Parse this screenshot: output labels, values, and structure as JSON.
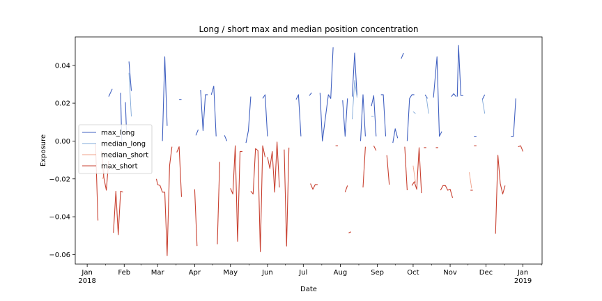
{
  "chart_data": {
    "type": "line",
    "title": "Long / short max and median position concentration",
    "xlabel": "Date",
    "ylabel": "Exposure",
    "xlim": [
      "2017-12-22",
      "2019-01-17"
    ],
    "ylim": [
      -0.065,
      0.055
    ],
    "grid": false,
    "legend_placement": "center-left",
    "x_ticks": [
      {
        "date": "2018-01-01",
        "label": "Jan",
        "sublabel": "2018"
      },
      {
        "date": "2018-02-01",
        "label": "Feb",
        "sublabel": ""
      },
      {
        "date": "2018-03-01",
        "label": "Mar",
        "sublabel": ""
      },
      {
        "date": "2018-04-01",
        "label": "Apr",
        "sublabel": ""
      },
      {
        "date": "2018-05-01",
        "label": "May",
        "sublabel": ""
      },
      {
        "date": "2018-06-01",
        "label": "Jun",
        "sublabel": ""
      },
      {
        "date": "2018-07-01",
        "label": "Jul",
        "sublabel": ""
      },
      {
        "date": "2018-08-01",
        "label": "Aug",
        "sublabel": ""
      },
      {
        "date": "2018-09-01",
        "label": "Sep",
        "sublabel": ""
      },
      {
        "date": "2018-10-01",
        "label": "Oct",
        "sublabel": ""
      },
      {
        "date": "2018-11-01",
        "label": "Nov",
        "sublabel": ""
      },
      {
        "date": "2018-12-01",
        "label": "Dec",
        "sublabel": ""
      },
      {
        "date": "2019-01-01",
        "label": "Jan",
        "sublabel": "2019"
      }
    ],
    "y_ticks": [
      {
        "value": 0.04,
        "label": "0.04"
      },
      {
        "value": 0.02,
        "label": "0.02"
      },
      {
        "value": 0.0,
        "label": "0.00"
      },
      {
        "value": -0.02,
        "label": "−0.02"
      },
      {
        "value": -0.04,
        "label": "−0.04"
      },
      {
        "value": -0.06,
        "label": "−0.06"
      }
    ],
    "series": [
      {
        "name": "max_long",
        "color": "#4060c0",
        "width": 1.1,
        "segments": [
          [
            [
              "2018-01-19",
              0.0235
            ],
            [
              "2018-01-22",
              0.0275
            ]
          ],
          [
            [
              "2018-01-29",
              0.0255
            ],
            [
              "2018-01-30",
              -0.001
            ]
          ],
          [
            [
              "2018-02-02",
              0.0205
            ],
            [
              "2018-02-03",
              0.0035
            ]
          ],
          [
            [
              "2018-02-05",
              0.042
            ],
            [
              "2018-02-07",
              0.0265
            ]
          ],
          [
            [
              "2018-03-05",
              0.0
            ],
            [
              "2018-03-07",
              0.0445
            ],
            [
              "2018-03-09",
              0.008
            ]
          ],
          [
            [
              "2018-03-19",
              0.022
            ],
            [
              "2018-03-21",
              0.022
            ]
          ],
          [
            [
              "2018-04-02",
              0.003
            ],
            [
              "2018-04-04",
              0.006
            ]
          ],
          [
            [
              "2018-04-06",
              0.027
            ],
            [
              "2018-04-08",
              0.0055
            ],
            [
              "2018-04-10",
              0.0245
            ],
            [
              "2018-04-12",
              0.0245
            ]
          ],
          [
            [
              "2018-04-15",
              0.0245
            ],
            [
              "2018-04-17",
              0.029
            ],
            [
              "2018-04-19",
              0.0025
            ]
          ],
          [
            [
              "2018-04-26",
              0.003
            ],
            [
              "2018-04-28",
              0.0
            ]
          ],
          [
            [
              "2018-05-14",
              -0.001
            ],
            [
              "2018-05-16",
              0.0055
            ],
            [
              "2018-05-18",
              0.0235
            ]
          ],
          [
            [
              "2018-05-28",
              0.0225
            ],
            [
              "2018-05-30",
              0.0245
            ],
            [
              "2018-06-01",
              0.0025
            ]
          ],
          [
            [
              "2018-06-25",
              0.022
            ],
            [
              "2018-06-27",
              0.0245
            ],
            [
              "2018-06-29",
              0.0025
            ]
          ],
          [
            [
              "2018-07-06",
              0.024
            ],
            [
              "2018-07-08",
              0.0255
            ]
          ],
          [
            [
              "2018-07-15",
              0.0255
            ],
            [
              "2018-07-17",
              0.0
            ],
            [
              "2018-07-22",
              0.0245
            ],
            [
              "2018-07-24",
              0.0225
            ],
            [
              "2018-07-26",
              0.0495
            ]
          ],
          [
            [
              "2018-08-03",
              0.0215
            ],
            [
              "2018-08-05",
              0.0025
            ],
            [
              "2018-08-07",
              0.0225
            ]
          ],
          [
            [
              "2018-08-11",
              0.0235
            ],
            [
              "2018-08-13",
              0.0465
            ],
            [
              "2018-08-15",
              0.024
            ]
          ],
          [
            [
              "2018-08-18",
              0.0
            ],
            [
              "2018-08-20",
              0.0245
            ],
            [
              "2018-08-22",
              0.0025
            ]
          ],
          [
            [
              "2018-08-27",
              0.0185
            ],
            [
              "2018-08-29",
              0.024
            ],
            [
              "2018-08-31",
              0.0025
            ]
          ],
          [
            [
              "2018-09-04",
              0.0245
            ],
            [
              "2018-09-06",
              0.0245
            ],
            [
              "2018-09-08",
              0.0025
            ]
          ],
          [
            [
              "2018-09-14",
              -0.001
            ],
            [
              "2018-09-16",
              0.0065
            ],
            [
              "2018-09-18",
              0.0015
            ]
          ],
          [
            [
              "2018-09-21",
              0.0435
            ],
            [
              "2018-09-23",
              0.0465
            ]
          ],
          [
            [
              "2018-09-26",
              0.0
            ],
            [
              "2018-09-28",
              0.0225
            ],
            [
              "2018-09-30",
              0.0245
            ],
            [
              "2018-10-02",
              0.0245
            ]
          ],
          [
            [
              "2018-10-11",
              0.0245
            ],
            [
              "2018-10-13",
              0.0225
            ]
          ],
          [
            [
              "2018-10-18",
              0.023
            ],
            [
              "2018-10-21",
              0.0445
            ],
            [
              "2018-10-23",
              0.0025
            ],
            [
              "2018-10-25",
              0.005
            ]
          ],
          [
            [
              "2018-11-02",
              0.0235
            ],
            [
              "2018-11-04",
              0.025
            ],
            [
              "2018-11-06",
              0.0235
            ]
          ],
          [
            [
              "2018-11-07",
              0.0235
            ],
            [
              "2018-11-08",
              0.0505
            ],
            [
              "2018-11-10",
              0.024
            ],
            [
              "2018-11-12",
              0.024
            ]
          ],
          [
            [
              "2018-11-21",
              0.0025
            ],
            [
              "2018-11-23",
              0.0025
            ]
          ],
          [
            [
              "2018-11-28",
              0.022
            ],
            [
              "2018-11-30",
              0.0245
            ]
          ],
          [
            [
              "2018-12-22",
              0.0025
            ],
            [
              "2018-12-24",
              0.0025
            ],
            [
              "2018-12-26",
              0.0225
            ]
          ]
        ]
      },
      {
        "name": "median_long",
        "color": "#80a8d8",
        "width": 0.9,
        "segments": [
          [
            [
              "2018-02-05",
              0.036
            ],
            [
              "2018-02-07",
              0.013
            ]
          ],
          [
            [
              "2018-08-11",
              0.0115
            ],
            [
              "2018-08-13",
              0.032
            ],
            [
              "2018-08-15",
              0.023
            ]
          ],
          [
            [
              "2018-08-27",
              0.013
            ],
            [
              "2018-08-29",
              0.013
            ]
          ],
          [
            [
              "2018-10-01",
              0.0155
            ],
            [
              "2018-10-03",
              0.0145
            ]
          ],
          [
            [
              "2018-10-12",
              0.0235
            ],
            [
              "2018-10-14",
              0.0145
            ]
          ],
          [
            [
              "2018-11-28",
              0.022
            ],
            [
              "2018-11-30",
              0.0145
            ]
          ]
        ]
      },
      {
        "name": "median_short",
        "color": "#f0a088",
        "width": 0.9,
        "segments": [
          [
            [
              "2018-01-14",
              -0.02
            ],
            [
              "2018-01-16",
              -0.015
            ]
          ],
          [
            [
              "2018-10-01",
              -0.013
            ],
            [
              "2018-10-03",
              -0.022
            ]
          ],
          [
            [
              "2018-11-17",
              -0.0165
            ],
            [
              "2018-11-19",
              -0.025
            ]
          ]
        ]
      },
      {
        "name": "max_short",
        "color": "#c84030",
        "width": 1.1,
        "segments": [
          [
            [
              "2018-01-08",
              -0.0015
            ],
            [
              "2018-01-10",
              -0.042
            ]
          ],
          [
            [
              "2018-01-13",
              -0.0055
            ],
            [
              "2018-01-15",
              -0.0195
            ],
            [
              "2018-01-17",
              -0.026
            ],
            [
              "2018-01-19",
              -0.0105
            ]
          ],
          [
            [
              "2018-01-23",
              -0.0485
            ],
            [
              "2018-01-25",
              -0.0265
            ],
            [
              "2018-01-27",
              -0.0495
            ],
            [
              "2018-01-29",
              -0.0265
            ],
            [
              "2018-01-31",
              -0.027
            ]
          ],
          [
            [
              "2018-02-28",
              -0.02
            ],
            [
              "2018-03-01",
              -0.023
            ],
            [
              "2018-03-03",
              -0.0235
            ],
            [
              "2018-03-05",
              -0.027
            ],
            [
              "2018-03-07",
              -0.027
            ],
            [
              "2018-03-09",
              -0.0605
            ],
            [
              "2018-03-11",
              -0.013
            ],
            [
              "2018-03-13",
              -0.003
            ]
          ],
          [
            [
              "2018-03-17",
              -0.006
            ],
            [
              "2018-03-19",
              -0.003
            ],
            [
              "2018-03-21",
              -0.0295
            ]
          ],
          [
            [
              "2018-04-01",
              -0.0255
            ],
            [
              "2018-04-03",
              -0.0555
            ]
          ],
          [
            [
              "2018-04-20",
              -0.0545
            ],
            [
              "2018-04-22",
              -0.011
            ]
          ],
          [
            [
              "2018-05-01",
              -0.025
            ],
            [
              "2018-05-03",
              -0.028
            ],
            [
              "2018-05-05",
              -0.0025
            ],
            [
              "2018-05-07",
              -0.053
            ],
            [
              "2018-05-09",
              -0.0055
            ],
            [
              "2018-05-11",
              -0.0055
            ]
          ],
          [
            [
              "2018-05-18",
              -0.0265
            ],
            [
              "2018-05-20",
              -0.028
            ],
            [
              "2018-05-22",
              -0.004
            ],
            [
              "2018-05-24",
              -0.005
            ],
            [
              "2018-05-26",
              -0.0585
            ],
            [
              "2018-05-28",
              -0.0025
            ],
            [
              "2018-05-30",
              -0.0085
            ]
          ],
          [
            [
              "2018-06-01",
              -0.0085
            ],
            [
              "2018-06-03",
              -0.0145
            ],
            [
              "2018-06-05",
              -0.0055
            ],
            [
              "2018-06-07",
              -0.027
            ],
            [
              "2018-06-09",
              -0.0005
            ],
            [
              "2018-06-11",
              -0.0245
            ]
          ],
          [
            [
              "2018-06-15",
              -0.0045
            ],
            [
              "2018-06-17",
              -0.0555
            ],
            [
              "2018-06-19",
              -0.0035
            ]
          ],
          [
            [
              "2018-07-07",
              -0.0225
            ],
            [
              "2018-07-09",
              -0.0255
            ],
            [
              "2018-07-11",
              -0.023
            ],
            [
              "2018-07-13",
              -0.023
            ]
          ],
          [
            [
              "2018-07-28",
              -0.0025
            ],
            [
              "2018-07-30",
              -0.0025
            ]
          ],
          [
            [
              "2018-08-05",
              -0.027
            ],
            [
              "2018-08-07",
              -0.0235
            ]
          ],
          [
            [
              "2018-08-08",
              -0.0485
            ],
            [
              "2018-08-10",
              -0.048
            ]
          ],
          [
            [
              "2018-08-20",
              -0.0245
            ],
            [
              "2018-08-22",
              -0.003
            ]
          ],
          [
            [
              "2018-08-29",
              -0.0025
            ],
            [
              "2018-08-31",
              -0.005
            ]
          ],
          [
            [
              "2018-09-09",
              -0.0075
            ],
            [
              "2018-09-11",
              -0.023
            ]
          ],
          [
            [
              "2018-09-24",
              -0.003
            ],
            [
              "2018-09-26",
              -0.026
            ]
          ],
          [
            [
              "2018-09-30",
              -0.0235
            ],
            [
              "2018-10-02",
              -0.0215
            ],
            [
              "2018-10-04",
              -0.0255
            ],
            [
              "2018-10-06",
              -0.0035
            ],
            [
              "2018-10-08",
              -0.0275
            ]
          ],
          [
            [
              "2018-10-10",
              -0.0035
            ],
            [
              "2018-10-12",
              -0.0035
            ]
          ],
          [
            [
              "2018-10-20",
              -0.0035
            ],
            [
              "2018-10-22",
              -0.0035
            ]
          ],
          [
            [
              "2018-10-24",
              -0.026
            ],
            [
              "2018-10-26",
              -0.0235
            ],
            [
              "2018-10-28",
              -0.0235
            ],
            [
              "2018-10-30",
              -0.026
            ],
            [
              "2018-11-01",
              -0.0255
            ],
            [
              "2018-11-03",
              -0.03
            ]
          ],
          [
            [
              "2018-11-18",
              -0.026
            ],
            [
              "2018-11-20",
              -0.026
            ]
          ],
          [
            [
              "2018-11-21",
              -0.0025
            ],
            [
              "2018-11-23",
              -0.0025
            ]
          ],
          [
            [
              "2018-12-09",
              -0.049
            ],
            [
              "2018-12-11",
              -0.0075
            ],
            [
              "2018-12-13",
              -0.0225
            ],
            [
              "2018-12-15",
              -0.028
            ],
            [
              "2018-12-17",
              -0.0235
            ]
          ],
          [
            [
              "2018-12-28",
              -0.003
            ],
            [
              "2018-12-30",
              -0.0025
            ],
            [
              "2019-01-01",
              -0.0055
            ]
          ]
        ]
      }
    ]
  }
}
